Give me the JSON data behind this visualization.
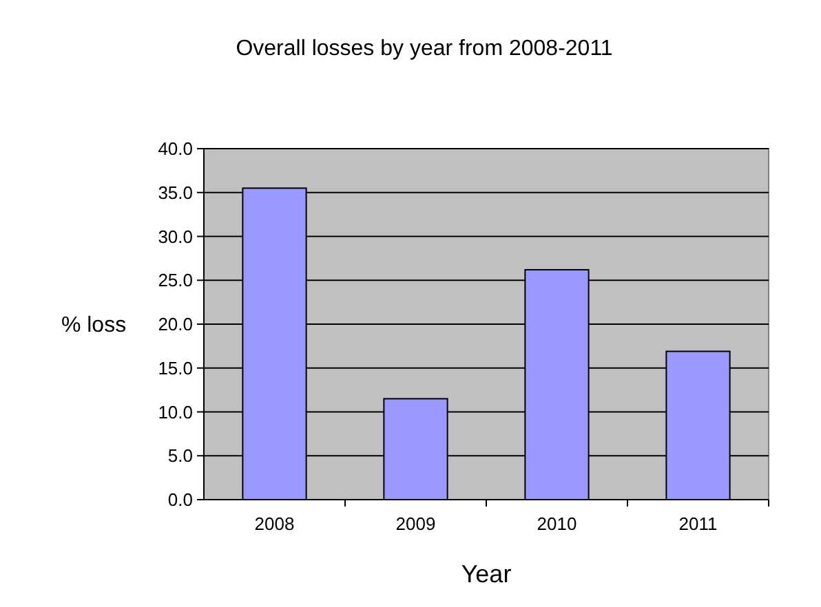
{
  "chart_data": {
    "type": "bar",
    "title": "Overall losses by year from 2008-2011",
    "xlabel": "Year",
    "ylabel": "% loss",
    "categories": [
      "2008",
      "2009",
      "2010",
      "2011"
    ],
    "values": [
      35.5,
      11.5,
      26.2,
      16.9
    ],
    "color": "#9999ff",
    "ylim": [
      0,
      40
    ],
    "yticks": [
      {
        "value": 0,
        "label": "0.0"
      },
      {
        "value": 5,
        "label": "5.0"
      },
      {
        "value": 10,
        "label": "10.0"
      },
      {
        "value": 15,
        "label": "15.0"
      },
      {
        "value": 20,
        "label": "20.0"
      },
      {
        "value": 25,
        "label": "25.0"
      },
      {
        "value": 30,
        "label": "30.0"
      },
      {
        "value": 35,
        "label": "35.0"
      },
      {
        "value": 40,
        "label": "40.0"
      }
    ],
    "grid": "y"
  }
}
